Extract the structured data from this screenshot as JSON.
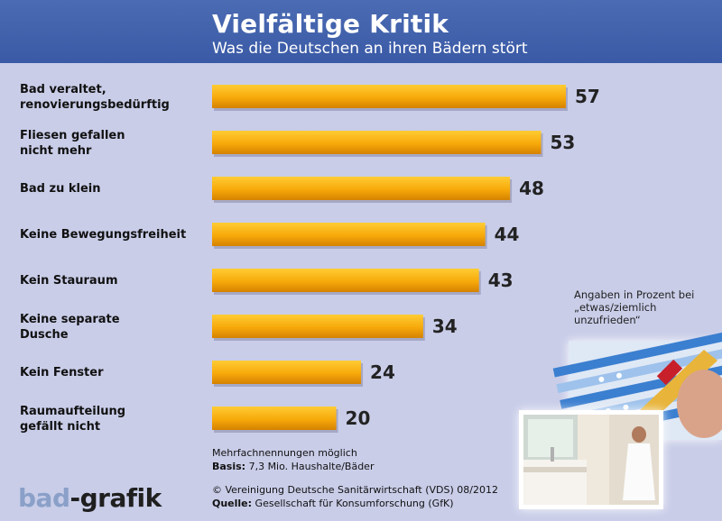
{
  "header": {
    "title": "Vielfältige Kritik",
    "subtitle": "Was die Deutschen an ihren Bädern stört"
  },
  "note": "Angaben in Prozent bei „etwas/ziemlich unzufrieden“",
  "footer": {
    "line1": "Mehrfachnennungen möglich",
    "basis_label": "Basis:",
    "basis_text": " 7,3 Mio. Haushalte/Bäder",
    "copyright": "© Vereinigung Deutsche Sanitärwirtschaft (VDS)  08/2012",
    "quelle_label": "Quelle:",
    "quelle_text": " Gesellschaft für Konsumforschung (GfK)"
  },
  "logo": {
    "part1": "bad",
    "part2": "-grafik"
  },
  "colors": {
    "header": "#3e5ea9",
    "background": "#c9cde8",
    "bar_top": "#ffc31a",
    "bar_bottom": "#d98a00"
  },
  "chart_data": {
    "type": "bar",
    "orientation": "horizontal",
    "categories": [
      [
        "Bad veraltet,",
        "renovierungsbedürftig"
      ],
      [
        "Fliesen gefallen",
        "nicht mehr"
      ],
      [
        "Bad zu klein"
      ],
      [
        "Keine Bewegungsfreiheit"
      ],
      [
        "Kein Stauraum"
      ],
      [
        "Keine separate",
        "Dusche"
      ],
      [
        "Kein Fenster"
      ],
      [
        "Raumaufteilung",
        "gefällt nicht"
      ]
    ],
    "values": [
      57,
      53,
      48,
      44,
      43,
      34,
      24,
      20
    ],
    "xlim": [
      0,
      57
    ],
    "grid": false,
    "legend": "none"
  }
}
